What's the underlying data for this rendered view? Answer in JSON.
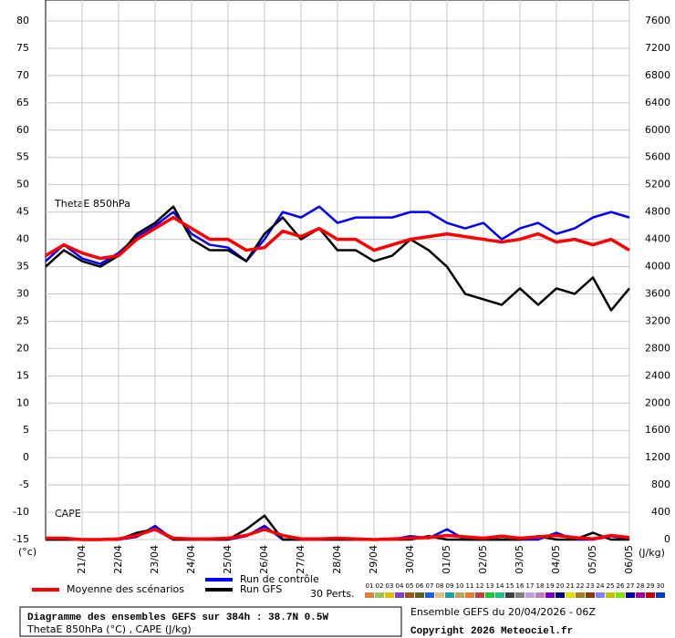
{
  "chart_data": {
    "type": "line",
    "annotations": {
      "thetae": "ThetaE 850hPa",
      "cape": "CAPE",
      "y_unit": "(°c)",
      "y2_unit": "(J/kg)"
    },
    "x": [
      0,
      12,
      24,
      36,
      48,
      60,
      72,
      84,
      96,
      108,
      120,
      132,
      144,
      156,
      168,
      180,
      192,
      204,
      216,
      228,
      240,
      252,
      264,
      276,
      288,
      300,
      312,
      324,
      336,
      348,
      360,
      372,
      384
    ],
    "xlim": [
      0,
      384
    ],
    "xticks": [
      {
        "value": 24,
        "label": "21/04"
      },
      {
        "value": 48,
        "label": "22/04"
      },
      {
        "value": 72,
        "label": "23/04"
      },
      {
        "value": 96,
        "label": "24/04"
      },
      {
        "value": 120,
        "label": "25/04"
      },
      {
        "value": 144,
        "label": "26/04"
      },
      {
        "value": 168,
        "label": "27/04"
      },
      {
        "value": 192,
        "label": "28/04"
      },
      {
        "value": 216,
        "label": "29/04"
      },
      {
        "value": 240,
        "label": "30/04"
      },
      {
        "value": 264,
        "label": "01/05"
      },
      {
        "value": 288,
        "label": "02/05"
      },
      {
        "value": 312,
        "label": "03/05"
      },
      {
        "value": 336,
        "label": "04/05"
      },
      {
        "value": 360,
        "label": "05/05"
      },
      {
        "value": 384,
        "label": "06/05"
      }
    ],
    "ylim": [
      -15,
      80
    ],
    "yticks": [
      -15,
      -10,
      -5,
      0,
      5,
      10,
      15,
      20,
      25,
      30,
      35,
      40,
      45,
      50,
      55,
      60,
      65,
      70,
      75,
      80
    ],
    "y2lim": [
      0,
      7600
    ],
    "y2ticks": [
      0,
      400,
      800,
      1200,
      1600,
      2000,
      2400,
      2800,
      3200,
      3600,
      4000,
      4400,
      4800,
      5200,
      5600,
      6000,
      6400,
      6800,
      7200,
      7600
    ],
    "grid": true,
    "series": [
      {
        "name": "Run de contrôle",
        "color": "#0000ff",
        "values": [
          36,
          39,
          36.5,
          35.5,
          37.5,
          40.5,
          42.5,
          45,
          41,
          39,
          38.5,
          36,
          40,
          45,
          44,
          46,
          43,
          44,
          44,
          44,
          45,
          45,
          43,
          42,
          43,
          40,
          42,
          43,
          41,
          42,
          44,
          45,
          44
        ]
      },
      {
        "name": "Run GFS",
        "color": "#000000",
        "values": [
          35,
          38,
          36,
          35,
          37,
          41,
          43,
          46,
          40,
          38,
          38,
          36,
          41,
          44,
          40,
          42,
          38,
          38,
          36,
          37,
          40,
          38,
          35,
          30,
          29,
          28,
          31,
          28,
          31,
          30,
          33,
          27,
          31
        ]
      },
      {
        "name": "Moyenne des scénarios",
        "color": "#ff0000",
        "values": [
          37,
          39,
          37.5,
          36.5,
          37,
          40,
          42,
          44,
          42,
          40,
          40,
          38,
          38.5,
          41.5,
          40.5,
          42,
          40,
          40,
          38,
          39,
          40,
          40.5,
          41,
          40.5,
          40,
          39.5,
          40,
          41,
          39.5,
          40,
          39,
          40,
          38
        ]
      }
    ],
    "cape_series": [
      {
        "color": "#0000ff",
        "axis": "y2",
        "values": [
          0,
          0,
          0,
          0,
          0,
          40,
          200,
          0,
          0,
          0,
          0,
          50,
          200,
          0,
          0,
          0,
          0,
          0,
          0,
          0,
          50,
          20,
          150,
          0,
          0,
          0,
          0,
          0,
          100,
          0,
          0,
          50,
          0
        ]
      },
      {
        "color": "#000000",
        "axis": "y2",
        "values": [
          0,
          0,
          0,
          0,
          0,
          100,
          150,
          0,
          0,
          0,
          0,
          150,
          350,
          0,
          0,
          0,
          0,
          0,
          0,
          0,
          0,
          50,
          0,
          0,
          0,
          0,
          0,
          50,
          0,
          0,
          100,
          0,
          0
        ]
      },
      {
        "color": "#ff0000",
        "axis": "y2",
        "values": [
          20,
          20,
          0,
          0,
          10,
          60,
          150,
          20,
          10,
          10,
          20,
          60,
          150,
          60,
          10,
          10,
          20,
          10,
          0,
          10,
          20,
          30,
          60,
          40,
          20,
          50,
          20,
          40,
          60,
          30,
          10,
          60,
          30
        ]
      }
    ],
    "perturbations": {
      "title": "30 Perts.",
      "labels": [
        "01",
        "02",
        "03",
        "04",
        "05",
        "06",
        "07",
        "08",
        "09",
        "10",
        "11",
        "12",
        "13",
        "14",
        "15",
        "16",
        "17",
        "18",
        "19",
        "20",
        "21",
        "22",
        "23",
        "24",
        "25",
        "26",
        "27",
        "28",
        "29",
        "30"
      ],
      "colors": [
        "#e08040",
        "#a0c060",
        "#e0c000",
        "#8040c0",
        "#a05020",
        "#606020",
        "#2060e0",
        "#e0c080",
        "#20a0a0",
        "#c0a060",
        "#e08030",
        "#c04040",
        "#20c040",
        "#20c080",
        "#404040",
        "#808080",
        "#c0a0e0",
        "#c080c0",
        "#8000c0",
        "#000080",
        "#e0e000",
        "#a08020",
        "#804000",
        "#8080ff",
        "#c0c000",
        "#80e000",
        "#0000a0",
        "#a000a0",
        "#c00000",
        "#0040c0"
      ]
    }
  },
  "footer": {
    "title": "Diagramme des ensembles GEFS sur 384h : 38.7N 0.5W",
    "subtitle": "ThetaE 850hPa (°C) , CAPE (J/kg)",
    "run": "Ensemble GEFS du 20/04/2026 - 06Z",
    "copyright": "Copyright 2026 Meteociel.fr"
  }
}
